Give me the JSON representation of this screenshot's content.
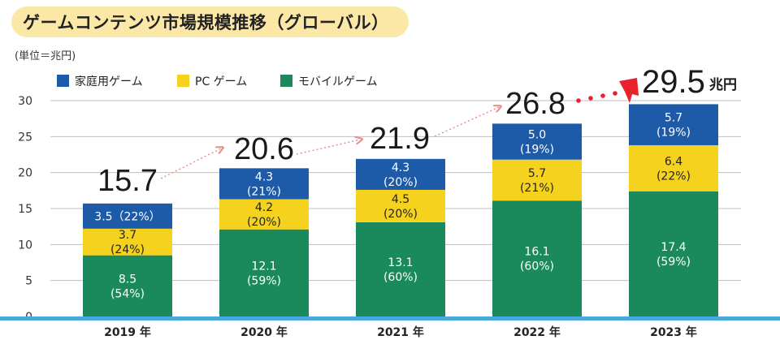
{
  "title": "ゲームコンテンツ市場規模推移（グローバル）",
  "unit_label": "(単位＝兆円)",
  "total_unit": "兆円",
  "colors": {
    "home": "#1d5aa8",
    "pc": "#f5d21e",
    "mobile": "#1a8a5c",
    "axis_base": "#4aa9dc",
    "grid": "#bfbfbf",
    "arrow_light": "#e88a86",
    "arrow_strong": "#e8222b",
    "title_bg": "#fbe8a6"
  },
  "chart_data": {
    "type": "bar",
    "stacked": true,
    "categories": [
      "2019 年",
      "2020 年",
      "2021 年",
      "2022 年",
      "2023 年"
    ],
    "series": [
      {
        "name": "モバイルゲーム",
        "color": "#1a8a5c",
        "values": [
          8.5,
          12.1,
          13.1,
          16.1,
          17.4
        ],
        "labels": [
          "8.5\n(54%)",
          "12.1\n(59%)",
          "13.1\n(60%)",
          "16.1\n(60%)",
          "17.4\n(59%)"
        ]
      },
      {
        "name": "PC ゲーム",
        "color": "#f5d21e",
        "values": [
          3.7,
          4.2,
          4.5,
          5.7,
          6.4
        ],
        "labels": [
          "3.7\n(24%)",
          "4.2\n(20%)",
          "4.5\n(20%)",
          "5.7\n(21%)",
          "6.4\n(22%)"
        ]
      },
      {
        "name": "家庭用ゲーム",
        "color": "#1d5aa8",
        "values": [
          3.5,
          4.3,
          4.3,
          5.0,
          5.7
        ],
        "labels": [
          "3.5（22%）",
          "4.3\n(21%)",
          "4.3\n(20%)",
          "5.0\n(19%)",
          "5.7\n(19%)"
        ]
      }
    ],
    "legend_order": [
      "家庭用ゲーム",
      "PC ゲーム",
      "モバイルゲーム"
    ],
    "totals": [
      "15.7",
      "20.6",
      "21.9",
      "26.8",
      "29.5"
    ],
    "ylim": [
      0,
      30
    ],
    "yticks": [
      0,
      5,
      10,
      15,
      20,
      25,
      30
    ],
    "grid": true,
    "legend_position": "top-left"
  }
}
